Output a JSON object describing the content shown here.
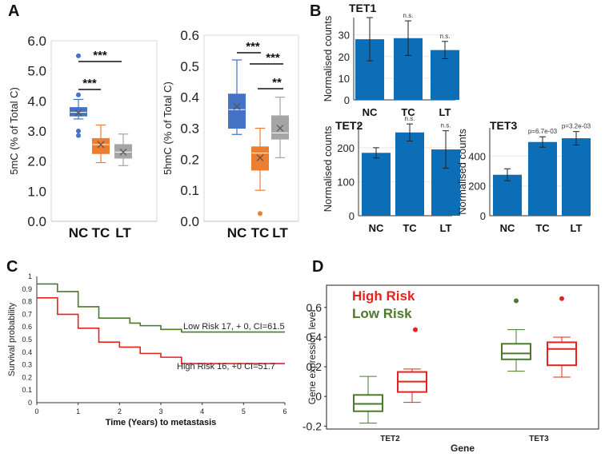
{
  "panels": {
    "A": "A",
    "B": "B",
    "C": "C",
    "D": "D"
  },
  "colors": {
    "blue": "#4472c4",
    "orange": "#ed7d31",
    "gray": "#a5a5a5",
    "teal": "#0d6eb8",
    "green": "#4a7a2a",
    "red": "#e8211d"
  },
  "chart_data": [
    {
      "id": "a1",
      "type": "box",
      "panel": "A",
      "ylabel": "5mC (% of Total C)",
      "ylim": [
        0,
        6
      ],
      "yticks": [
        "0.0",
        "1.0",
        "2.0",
        "3.0",
        "4.0",
        "5.0",
        "6.0"
      ],
      "categories": [
        "NC",
        "TC",
        "LT"
      ],
      "boxes": [
        {
          "cat": "NC",
          "color": "blue",
          "min": 3.4,
          "q1": 3.5,
          "median": 3.62,
          "q3": 3.78,
          "max": 4.05,
          "mean": 3.6,
          "outliers": [
            5.5,
            4.2,
            3.0,
            2.85
          ]
        },
        {
          "cat": "TC",
          "color": "orange",
          "min": 1.95,
          "q1": 2.25,
          "median": 2.55,
          "q3": 2.75,
          "max": 3.2,
          "mean": 2.55,
          "outliers": []
        },
        {
          "cat": "LT",
          "color": "gray",
          "min": 1.85,
          "q1": 2.1,
          "median": 2.3,
          "q3": 2.55,
          "max": 2.9,
          "mean": 2.3,
          "outliers": []
        }
      ],
      "significance": [
        {
          "from": "NC",
          "to": "LT",
          "label": "***"
        },
        {
          "from": "NC",
          "to": "TC",
          "label": "***"
        }
      ]
    },
    {
      "id": "a2",
      "type": "box",
      "panel": "A",
      "ylabel": "5hmC (% of Total C)",
      "ylim": [
        0,
        0.6
      ],
      "yticks": [
        "0.0",
        "0.1",
        "0.2",
        "0.3",
        "0.4",
        "0.5",
        "0.6"
      ],
      "categories": [
        "NC",
        "TC",
        "LT"
      ],
      "boxes": [
        {
          "cat": "NC",
          "color": "blue",
          "min": 0.28,
          "q1": 0.3,
          "median": 0.36,
          "q3": 0.41,
          "max": 0.52,
          "mean": 0.37,
          "outliers": []
        },
        {
          "cat": "TC",
          "color": "orange",
          "min": 0.1,
          "q1": 0.165,
          "median": 0.22,
          "q3": 0.24,
          "max": 0.3,
          "mean": 0.205,
          "outliers": [
            0.025
          ]
        },
        {
          "cat": "LT",
          "color": "gray",
          "min": 0.205,
          "q1": 0.265,
          "median": 0.285,
          "q3": 0.34,
          "max": 0.4,
          "mean": 0.3,
          "outliers": []
        }
      ],
      "significance": [
        {
          "from": "NC",
          "to": "TC",
          "label": "***"
        },
        {
          "from": "TC",
          "to": "LT",
          "label": "***"
        },
        {
          "from": "TC",
          "to": "LT",
          "label": "**"
        }
      ]
    },
    {
      "id": "b1",
      "type": "bar",
      "panel": "B",
      "title": "TET1",
      "ylabel": "Normalised counts",
      "ylim": [
        0,
        38
      ],
      "yticks": [
        0,
        10,
        20,
        30
      ],
      "categories": [
        "NC",
        "TC",
        "LT"
      ],
      "values": [
        28,
        28.5,
        23
      ],
      "err": [
        10,
        8,
        4
      ],
      "annotations": [
        "",
        "n.s.",
        "n.s."
      ]
    },
    {
      "id": "b2",
      "type": "bar",
      "panel": "B",
      "title": "TET2",
      "ylabel": "Normalised counts",
      "ylim": [
        0,
        275
      ],
      "yticks": [
        0,
        100,
        200
      ],
      "categories": [
        "NC",
        "TC",
        "LT"
      ],
      "values": [
        185,
        245,
        195
      ],
      "err": [
        15,
        25,
        55
      ],
      "annotations": [
        "",
        "n.s.",
        "n.s."
      ]
    },
    {
      "id": "b3",
      "type": "bar",
      "panel": "B",
      "title": "TET3",
      "ylabel": "Normalised counts",
      "ylim": [
        0,
        590
      ],
      "yticks": [
        0,
        200,
        400
      ],
      "categories": [
        "NC",
        "TC",
        "LT"
      ],
      "values": [
        275,
        495,
        520
      ],
      "err": [
        40,
        35,
        45
      ],
      "annotations": [
        "",
        "p=6.7e-03",
        "p=3.2e-03"
      ]
    },
    {
      "id": "c",
      "type": "line",
      "subtype": "kaplan-meier",
      "panel": "C",
      "xlabel": "Time (Years)  to metastasis",
      "ylabel": "Survival probability",
      "xlim": [
        0,
        6
      ],
      "ylim": [
        0,
        1
      ],
      "xticks": [
        0,
        1,
        2,
        3,
        4,
        5,
        6
      ],
      "yticks": [
        "0",
        "0.1",
        "0.2",
        "0.3",
        "0.4",
        "0.5",
        "0.6",
        "0.7",
        "0.8",
        "0.9",
        "1"
      ],
      "series": [
        {
          "name": "Low Risk 17, + 0, CI=61.5",
          "color": "green",
          "steps": [
            [
              0,
              0.94
            ],
            [
              0.5,
              0.88
            ],
            [
              1,
              0.76
            ],
            [
              1.5,
              0.67
            ],
            [
              2.25,
              0.63
            ],
            [
              2.5,
              0.61
            ],
            [
              3,
              0.58
            ],
            [
              3.5,
              0.56
            ],
            [
              6,
              0.56
            ]
          ]
        },
        {
          "name": "High Risk 16, +0 CI=51.7",
          "color": "red",
          "steps": [
            [
              0,
              0.83
            ],
            [
              0.5,
              0.7
            ],
            [
              1,
              0.59
            ],
            [
              1.5,
              0.48
            ],
            [
              2,
              0.44
            ],
            [
              2.5,
              0.39
            ],
            [
              3,
              0.36
            ],
            [
              3.5,
              0.31
            ],
            [
              6,
              0.31
            ]
          ]
        }
      ]
    },
    {
      "id": "d",
      "type": "box",
      "panel": "D",
      "xlabel": "Gene",
      "ylabel": "Gene expression level",
      "ylim": [
        -0.22,
        0.75
      ],
      "yticks": [
        "-0.2",
        "0",
        "0.2",
        "0.4",
        "0.6"
      ],
      "categories": [
        "TET2",
        "TET3"
      ],
      "legend": [
        {
          "name": "High Risk",
          "color": "red"
        },
        {
          "name": "Low Risk",
          "color": "green"
        }
      ],
      "boxes": [
        {
          "cat": "TET2",
          "group": "Low Risk",
          "color": "green",
          "min": -0.18,
          "q1": -0.1,
          "median": -0.05,
          "q3": 0.01,
          "max": 0.135,
          "outliers": []
        },
        {
          "cat": "TET2",
          "group": "High Risk",
          "color": "red",
          "min": -0.04,
          "q1": 0.03,
          "median": 0.1,
          "q3": 0.165,
          "max": 0.185,
          "outliers": [
            0.45
          ]
        },
        {
          "cat": "TET3",
          "group": "Low Risk",
          "color": "green",
          "min": 0.17,
          "q1": 0.25,
          "median": 0.29,
          "q3": 0.355,
          "max": 0.45,
          "outliers": [
            0.645
          ]
        },
        {
          "cat": "TET3",
          "group": "High Risk",
          "color": "red",
          "min": 0.13,
          "q1": 0.21,
          "median": 0.32,
          "q3": 0.365,
          "max": 0.4,
          "outliers": [
            0.66
          ]
        }
      ]
    }
  ]
}
